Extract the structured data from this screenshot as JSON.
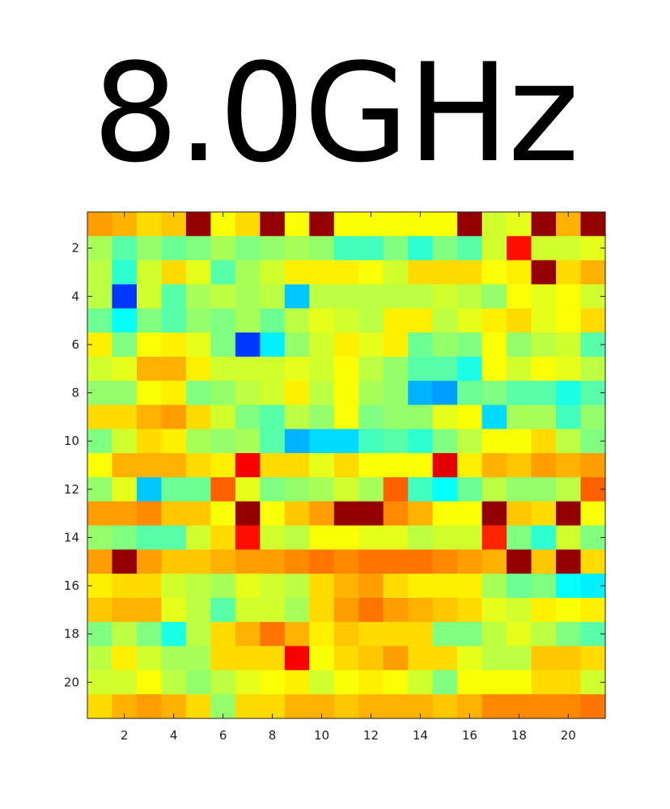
{
  "chart_data": {
    "type": "heatmap",
    "title": "8.0GHz",
    "xlabel": "",
    "ylabel": "",
    "rows": 21,
    "cols": 21,
    "xticks": [
      "2",
      "4",
      "6",
      "8",
      "10",
      "12",
      "14",
      "16",
      "18",
      "20"
    ],
    "yticks": [
      "2",
      "4",
      "6",
      "8",
      "10",
      "12",
      "14",
      "16",
      "18",
      "20"
    ],
    "colormap": "jet",
    "clim": [
      0,
      1
    ],
    "values": [
      [
        0.72,
        0.7,
        0.66,
        0.68,
        0.98,
        0.62,
        0.66,
        0.98,
        0.62,
        0.98,
        0.62,
        0.62,
        0.62,
        0.62,
        0.62,
        0.98,
        0.58,
        0.6,
        0.98,
        0.7,
        0.98
      ],
      [
        0.54,
        0.46,
        0.52,
        0.48,
        0.5,
        0.54,
        0.5,
        0.52,
        0.54,
        0.52,
        0.44,
        0.44,
        0.5,
        0.42,
        0.5,
        0.46,
        0.58,
        0.86,
        0.58,
        0.58,
        0.6
      ],
      [
        0.56,
        0.42,
        0.58,
        0.66,
        0.6,
        0.46,
        0.54,
        0.58,
        0.64,
        0.64,
        0.64,
        0.62,
        0.58,
        0.66,
        0.66,
        0.66,
        0.62,
        0.64,
        0.98,
        0.66,
        0.7
      ],
      [
        0.56,
        0.18,
        0.58,
        0.46,
        0.54,
        0.56,
        0.54,
        0.56,
        0.32,
        0.56,
        0.56,
        0.56,
        0.56,
        0.56,
        0.58,
        0.56,
        0.52,
        0.62,
        0.6,
        0.62,
        0.58
      ],
      [
        0.48,
        0.38,
        0.5,
        0.46,
        0.52,
        0.5,
        0.54,
        0.48,
        0.56,
        0.6,
        0.58,
        0.56,
        0.64,
        0.64,
        0.56,
        0.6,
        0.64,
        0.66,
        0.6,
        0.62,
        0.66
      ],
      [
        0.64,
        0.5,
        0.62,
        0.64,
        0.6,
        0.5,
        0.18,
        0.36,
        0.52,
        0.58,
        0.64,
        0.6,
        0.64,
        0.48,
        0.52,
        0.5,
        0.62,
        0.52,
        0.56,
        0.58,
        0.46
      ],
      [
        0.58,
        0.6,
        0.7,
        0.7,
        0.64,
        0.58,
        0.58,
        0.58,
        0.6,
        0.58,
        0.62,
        0.56,
        0.52,
        0.46,
        0.46,
        0.4,
        0.62,
        0.58,
        0.62,
        0.6,
        0.56
      ],
      [
        0.52,
        0.52,
        0.62,
        0.64,
        0.5,
        0.52,
        0.56,
        0.58,
        0.64,
        0.56,
        0.62,
        0.54,
        0.52,
        0.3,
        0.28,
        0.48,
        0.5,
        0.46,
        0.46,
        0.4,
        0.46
      ],
      [
        0.66,
        0.66,
        0.7,
        0.72,
        0.66,
        0.58,
        0.5,
        0.46,
        0.56,
        0.52,
        0.62,
        0.5,
        0.52,
        0.52,
        0.6,
        0.62,
        0.34,
        0.54,
        0.54,
        0.44,
        0.52
      ],
      [
        0.5,
        0.58,
        0.66,
        0.64,
        0.54,
        0.52,
        0.54,
        0.46,
        0.3,
        0.34,
        0.34,
        0.44,
        0.46,
        0.42,
        0.5,
        0.56,
        0.62,
        0.62,
        0.66,
        0.56,
        0.5
      ],
      [
        0.62,
        0.7,
        0.7,
        0.7,
        0.66,
        0.64,
        0.88,
        0.66,
        0.66,
        0.6,
        0.66,
        0.62,
        0.62,
        0.62,
        0.9,
        0.64,
        0.7,
        0.68,
        0.72,
        0.7,
        0.72
      ],
      [
        0.52,
        0.6,
        0.32,
        0.48,
        0.48,
        0.78,
        0.6,
        0.5,
        0.52,
        0.54,
        0.58,
        0.54,
        0.78,
        0.44,
        0.38,
        0.48,
        0.56,
        0.52,
        0.52,
        0.56,
        0.78
      ],
      [
        0.72,
        0.72,
        0.74,
        0.68,
        0.68,
        0.62,
        0.98,
        0.62,
        0.68,
        0.72,
        0.98,
        0.98,
        0.74,
        0.7,
        0.62,
        0.62,
        0.98,
        0.68,
        0.66,
        0.98,
        0.62
      ],
      [
        0.52,
        0.5,
        0.46,
        0.46,
        0.58,
        0.66,
        0.86,
        0.58,
        0.56,
        0.62,
        0.62,
        0.6,
        0.6,
        0.56,
        0.58,
        0.58,
        0.84,
        0.5,
        0.42,
        0.58,
        0.5
      ],
      [
        0.72,
        0.98,
        0.72,
        0.68,
        0.68,
        0.7,
        0.72,
        0.72,
        0.74,
        0.76,
        0.74,
        0.76,
        0.76,
        0.76,
        0.74,
        0.72,
        0.7,
        0.98,
        0.68,
        0.98,
        0.66
      ],
      [
        0.64,
        0.66,
        0.66,
        0.58,
        0.56,
        0.54,
        0.6,
        0.58,
        0.56,
        0.66,
        0.7,
        0.72,
        0.66,
        0.64,
        0.64,
        0.64,
        0.54,
        0.48,
        0.5,
        0.38,
        0.36
      ],
      [
        0.68,
        0.7,
        0.7,
        0.6,
        0.56,
        0.46,
        0.58,
        0.58,
        0.54,
        0.66,
        0.72,
        0.76,
        0.72,
        0.7,
        0.68,
        0.66,
        0.6,
        0.58,
        0.64,
        0.62,
        0.64
      ],
      [
        0.5,
        0.56,
        0.5,
        0.4,
        0.56,
        0.66,
        0.7,
        0.76,
        0.7,
        0.64,
        0.68,
        0.66,
        0.66,
        0.66,
        0.5,
        0.5,
        0.56,
        0.6,
        0.56,
        0.5,
        0.46
      ],
      [
        0.56,
        0.64,
        0.58,
        0.54,
        0.54,
        0.66,
        0.66,
        0.66,
        0.88,
        0.62,
        0.66,
        0.68,
        0.72,
        0.66,
        0.66,
        0.6,
        0.56,
        0.56,
        0.68,
        0.68,
        0.66
      ],
      [
        0.58,
        0.58,
        0.62,
        0.56,
        0.52,
        0.56,
        0.6,
        0.62,
        0.64,
        0.58,
        0.62,
        0.64,
        0.62,
        0.58,
        0.5,
        0.62,
        0.62,
        0.62,
        0.66,
        0.66,
        0.58
      ],
      [
        0.66,
        0.7,
        0.72,
        0.7,
        0.66,
        0.52,
        0.66,
        0.66,
        0.7,
        0.7,
        0.68,
        0.7,
        0.7,
        0.7,
        0.68,
        0.7,
        0.74,
        0.74,
        0.74,
        0.74,
        0.76
      ]
    ]
  }
}
